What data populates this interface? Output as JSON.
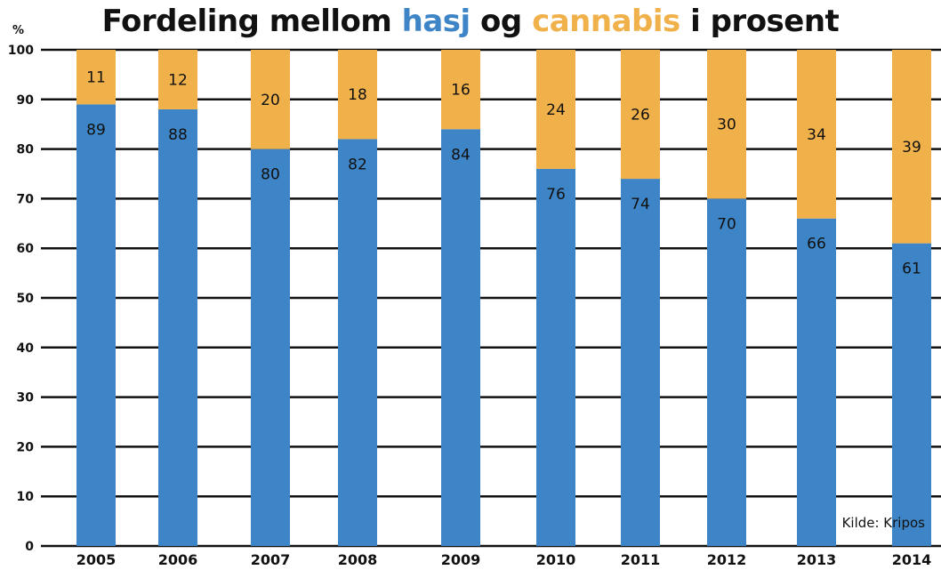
{
  "chart_data": {
    "type": "bar",
    "stacked": true,
    "title_parts": [
      {
        "text": "Fordeling mellom ",
        "color": "#111111"
      },
      {
        "text": "hasj",
        "color": "#3d85c6"
      },
      {
        "text": " og ",
        "color": "#111111"
      },
      {
        "text": "cannabis",
        "color": "#f0b14b"
      },
      {
        "text": " i prosent",
        "color": "#111111"
      }
    ],
    "unit_label": "%",
    "categories": [
      "2005",
      "2006",
      "2007",
      "2008",
      "2009",
      "2010",
      "2011",
      "2012",
      "2013",
      "2014"
    ],
    "series": [
      {
        "values": [
          89,
          88,
          80,
          82,
          84,
          76,
          74,
          70,
          66,
          61
        ],
        "color": "#3d85c6"
      },
      {
        "values": [
          11,
          12,
          20,
          18,
          16,
          24,
          26,
          30,
          34,
          39
        ],
        "color": "#f0b14b"
      }
    ],
    "ylim": [
      0,
      100
    ],
    "yticks": [
      0,
      10,
      20,
      30,
      40,
      50,
      60,
      70,
      80,
      90,
      100
    ],
    "grid": true,
    "source": "Kilde: Kripos"
  }
}
